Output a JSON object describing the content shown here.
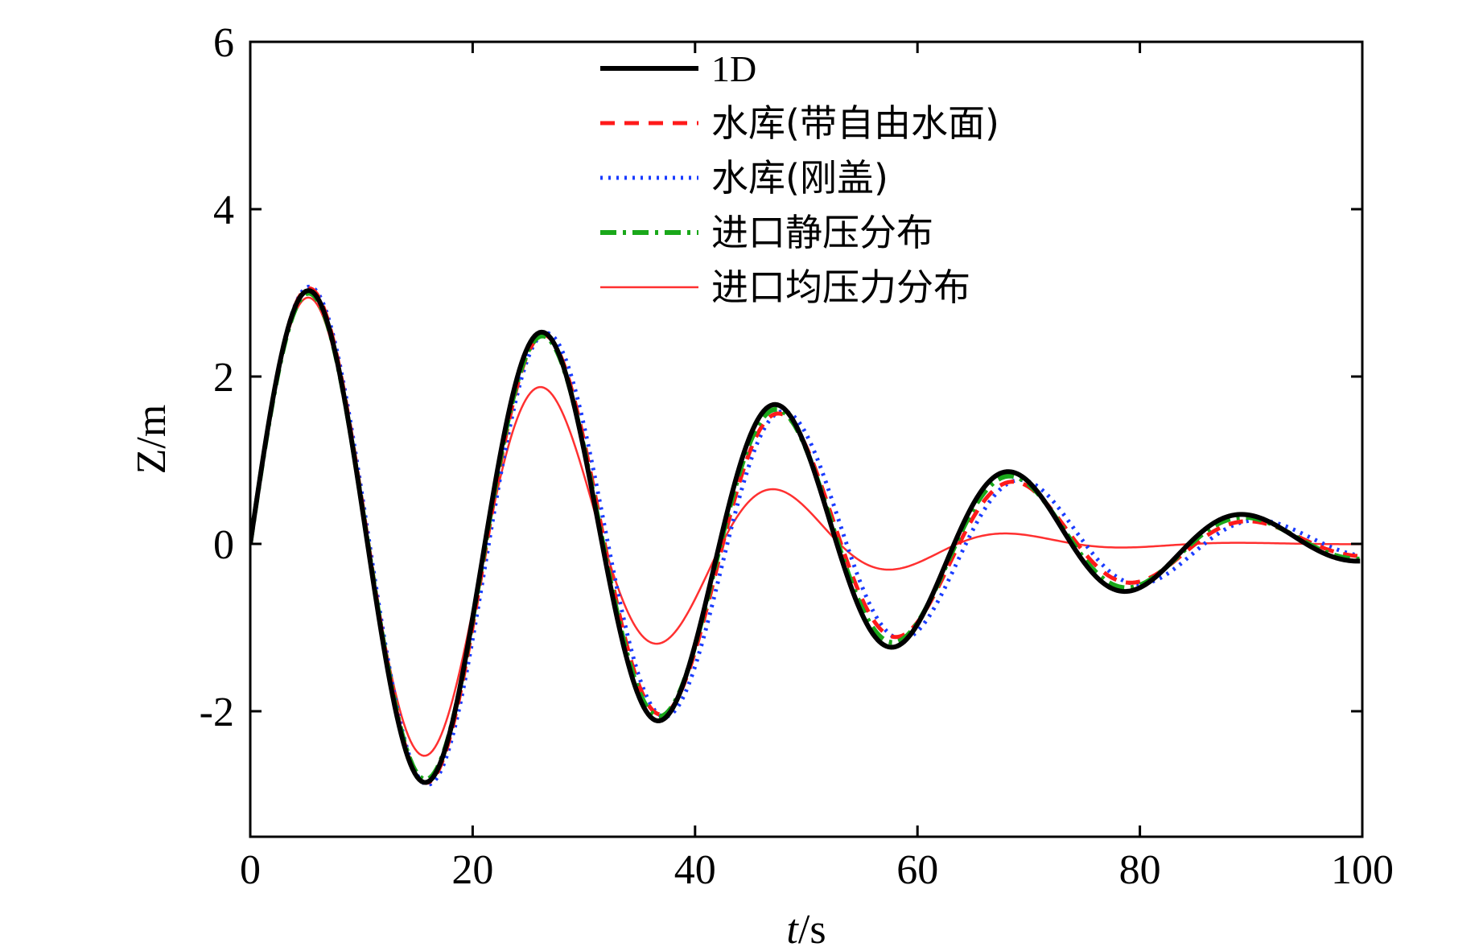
{
  "chart_data": {
    "type": "line",
    "xlabel": {
      "italic": "t",
      "unit": "/s"
    },
    "ylabel": "Z/m",
    "xlim": [
      0,
      100
    ],
    "ylim": [
      -3.5,
      6
    ],
    "xticks": [
      "0",
      "20",
      "40",
      "60",
      "80",
      "100"
    ],
    "yticks": [
      "-2",
      "0",
      "2",
      "4",
      "6"
    ],
    "grid": false,
    "legend_position": "top-center",
    "series": [
      {
        "name": "1D",
        "color": "#000000",
        "dash": "solid",
        "amplitude": 3.05,
        "decay": 0.0027,
        "period": 21.1,
        "phase": 0.0
      },
      {
        "name": "水库(带自由水面)",
        "color": "#ff1a1a",
        "dash": "dashed",
        "amplitude": 3.08,
        "decay": 0.003,
        "period": 21.25,
        "phase": 0.0
      },
      {
        "name": "水库(刚盖)",
        "color": "#1a3cff",
        "dash": "dotted",
        "amplitude": 3.1,
        "decay": 0.0029,
        "period": 21.45,
        "phase": 0.0
      },
      {
        "name": "进口静压分布",
        "color": "#1aa81a",
        "dash": "dashdot",
        "amplitude": 3.02,
        "decay": 0.0028,
        "period": 21.15,
        "phase": 0.0
      },
      {
        "name": "进口均压力分布",
        "color": "#ff3030",
        "dash": "thin",
        "amplitude": 3.0,
        "decay": 0.0068,
        "period": 21.2,
        "phase": 0.0
      }
    ]
  }
}
